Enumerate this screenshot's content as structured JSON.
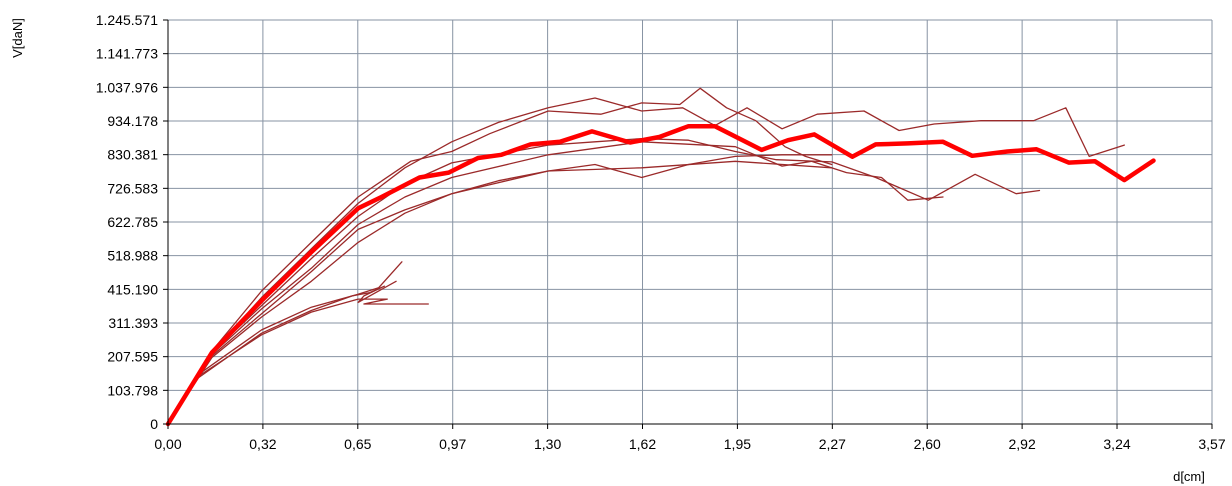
{
  "chart_data": {
    "type": "line",
    "xlabel": "d[cm]",
    "ylabel": "V[daN]",
    "xlim": [
      0,
      3.57
    ],
    "ylim": [
      0,
      1245571
    ],
    "x_ticks": [
      {
        "value": 0,
        "label": "0,00"
      },
      {
        "value": 0.3245,
        "label": "0,32"
      },
      {
        "value": 0.649,
        "label": "0,65"
      },
      {
        "value": 0.9736,
        "label": "0,97"
      },
      {
        "value": 1.2981,
        "label": "1,30"
      },
      {
        "value": 1.6226,
        "label": "1,62"
      },
      {
        "value": 1.9471,
        "label": "1,95"
      },
      {
        "value": 2.2717,
        "label": "2,27"
      },
      {
        "value": 2.5962,
        "label": "2,60"
      },
      {
        "value": 2.9207,
        "label": "2,92"
      },
      {
        "value": 3.2452,
        "label": "3,24"
      },
      {
        "value": 3.57,
        "label": "3,57"
      }
    ],
    "y_ticks": [
      {
        "value": 0,
        "label": "0"
      },
      {
        "value": 103798,
        "label": "103.798"
      },
      {
        "value": 207595,
        "label": "207.595"
      },
      {
        "value": 311393,
        "label": "311.393"
      },
      {
        "value": 415190,
        "label": "415.190"
      },
      {
        "value": 518988,
        "label": "518.988"
      },
      {
        "value": 622785,
        "label": "622.785"
      },
      {
        "value": 726583,
        "label": "726.583"
      },
      {
        "value": 830381,
        "label": "830.381"
      },
      {
        "value": 934178,
        "label": "934.178"
      },
      {
        "value": 1037976,
        "label": "1.037.976"
      },
      {
        "value": 1141773,
        "label": "1.141.773"
      },
      {
        "value": 1245571,
        "label": "1.245.571"
      }
    ],
    "grid": true,
    "colors": {
      "thin": "#9b2a2a",
      "bold": "#ff0000",
      "grid": "#8793a3"
    },
    "series": [
      {
        "style": "bold",
        "points": [
          [
            0,
            0
          ],
          [
            0.15,
            220000
          ],
          [
            0.32,
            380000
          ],
          [
            0.49,
            530000
          ],
          [
            0.65,
            665000
          ],
          [
            0.73,
            700000
          ],
          [
            0.86,
            760000
          ],
          [
            0.96,
            775000
          ],
          [
            1.06,
            820000
          ],
          [
            1.14,
            830000
          ],
          [
            1.24,
            862000
          ],
          [
            1.34,
            870000
          ],
          [
            1.45,
            902000
          ],
          [
            1.58,
            868000
          ],
          [
            1.68,
            885000
          ],
          [
            1.78,
            918000
          ],
          [
            1.87,
            918000
          ],
          [
            2.03,
            845000
          ],
          [
            2.12,
            875000
          ],
          [
            2.21,
            893000
          ],
          [
            2.34,
            824000
          ],
          [
            2.42,
            862000
          ],
          [
            2.53,
            865000
          ],
          [
            2.65,
            870000
          ],
          [
            2.75,
            827000
          ],
          [
            2.87,
            840000
          ],
          [
            2.97,
            847000
          ],
          [
            3.08,
            806000
          ],
          [
            3.17,
            810000
          ],
          [
            3.27,
            752000
          ],
          [
            3.37,
            812000
          ]
        ]
      },
      {
        "style": "thin",
        "points": [
          [
            0,
            0
          ],
          [
            0.15,
            225000
          ],
          [
            0.32,
            410000
          ],
          [
            0.49,
            560000
          ],
          [
            0.65,
            700000
          ],
          [
            0.83,
            810000
          ],
          [
            0.97,
            840000
          ],
          [
            1.1,
            895000
          ],
          [
            1.3,
            965000
          ],
          [
            1.48,
            955000
          ],
          [
            1.62,
            990000
          ],
          [
            1.75,
            985000
          ],
          [
            1.82,
            1035000
          ],
          [
            1.91,
            975000
          ],
          [
            2.01,
            935000
          ],
          [
            2.11,
            855000
          ],
          [
            2.18,
            825000
          ],
          [
            2.27,
            800000
          ]
        ]
      },
      {
        "style": "thin",
        "points": [
          [
            0,
            0
          ],
          [
            0.15,
            220000
          ],
          [
            0.32,
            390000
          ],
          [
            0.49,
            540000
          ],
          [
            0.65,
            680000
          ],
          [
            0.81,
            790000
          ],
          [
            0.97,
            870000
          ],
          [
            1.13,
            930000
          ],
          [
            1.3,
            975000
          ],
          [
            1.46,
            1005000
          ],
          [
            1.62,
            965000
          ],
          [
            1.76,
            975000
          ],
          [
            1.87,
            920000
          ],
          [
            1.98,
            975000
          ],
          [
            2.1,
            910000
          ],
          [
            2.22,
            955000
          ],
          [
            2.38,
            965000
          ],
          [
            2.5,
            905000
          ],
          [
            2.62,
            925000
          ],
          [
            2.78,
            935000
          ],
          [
            2.96,
            935000
          ],
          [
            3.07,
            975000
          ],
          [
            3.15,
            825000
          ],
          [
            3.27,
            860000
          ]
        ]
      },
      {
        "style": "thin",
        "points": [
          [
            0,
            0
          ],
          [
            0.15,
            220000
          ],
          [
            0.32,
            365000
          ],
          [
            0.49,
            510000
          ],
          [
            0.65,
            640000
          ],
          [
            0.81,
            740000
          ],
          [
            0.97,
            805000
          ],
          [
            1.3,
            860000
          ],
          [
            1.46,
            870000
          ],
          [
            1.62,
            880000
          ],
          [
            1.78,
            875000
          ],
          [
            1.94,
            840000
          ],
          [
            2.08,
            815000
          ],
          [
            2.27,
            808000
          ],
          [
            2.42,
            760000
          ],
          [
            2.6,
            690000
          ],
          [
            2.76,
            770000
          ],
          [
            2.9,
            710000
          ],
          [
            2.98,
            720000
          ]
        ]
      },
      {
        "style": "thin",
        "points": [
          [
            0,
            0
          ],
          [
            0.15,
            215000
          ],
          [
            0.32,
            355000
          ],
          [
            0.49,
            480000
          ],
          [
            0.65,
            615000
          ],
          [
            0.81,
            700000
          ],
          [
            0.97,
            760000
          ],
          [
            1.3,
            830000
          ],
          [
            1.62,
            870000
          ],
          [
            1.94,
            855000
          ],
          [
            2.1,
            795000
          ],
          [
            2.2,
            810000
          ],
          [
            2.32,
            775000
          ],
          [
            2.44,
            760000
          ],
          [
            2.53,
            690000
          ],
          [
            2.65,
            700000
          ]
        ]
      },
      {
        "style": "thin",
        "points": [
          [
            0,
            0
          ],
          [
            0.15,
            210000
          ],
          [
            0.32,
            340000
          ],
          [
            0.49,
            470000
          ],
          [
            0.65,
            600000
          ],
          [
            0.81,
            660000
          ],
          [
            0.97,
            710000
          ],
          [
            1.3,
            780000
          ],
          [
            1.62,
            790000
          ],
          [
            1.94,
            810000
          ],
          [
            2.27,
            790000
          ]
        ]
      },
      {
        "style": "thin",
        "points": [
          [
            0,
            0
          ],
          [
            0.15,
            205000
          ],
          [
            0.32,
            330000
          ],
          [
            0.49,
            440000
          ],
          [
            0.65,
            560000
          ],
          [
            0.81,
            650000
          ],
          [
            0.97,
            710000
          ],
          [
            1.13,
            750000
          ],
          [
            1.3,
            780000
          ],
          [
            1.46,
            800000
          ],
          [
            1.62,
            760000
          ],
          [
            1.78,
            800000
          ],
          [
            1.94,
            825000
          ],
          [
            2.1,
            830000
          ],
          [
            2.27,
            830000
          ]
        ]
      },
      {
        "style": "thin",
        "points": [
          [
            0,
            0
          ],
          [
            0.1,
            150000
          ],
          [
            0.32,
            290000
          ],
          [
            0.49,
            360000
          ],
          [
            0.65,
            400000
          ],
          [
            0.72,
            420000
          ],
          [
            0.8,
            500000
          ]
        ]
      },
      {
        "style": "thin",
        "points": [
          [
            0,
            0
          ],
          [
            0.1,
            140000
          ],
          [
            0.32,
            280000
          ],
          [
            0.49,
            350000
          ],
          [
            0.63,
            395000
          ],
          [
            0.69,
            405000
          ],
          [
            0.74,
            425000
          ],
          [
            0.67,
            395000
          ],
          [
            0.65,
            375000
          ],
          [
            0.78,
            440000
          ]
        ]
      },
      {
        "style": "thin",
        "points": [
          [
            0,
            0
          ],
          [
            0.1,
            145000
          ],
          [
            0.32,
            275000
          ],
          [
            0.49,
            345000
          ],
          [
            0.65,
            385000
          ],
          [
            0.75,
            385000
          ],
          [
            0.67,
            370000
          ],
          [
            0.89,
            370000
          ]
        ]
      }
    ]
  }
}
